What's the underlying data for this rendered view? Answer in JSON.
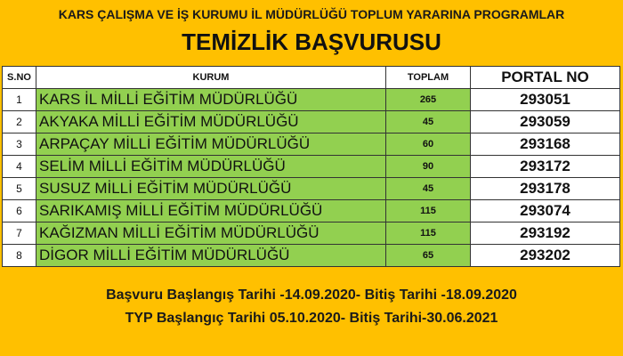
{
  "header": {
    "org": "KARS ÇALIŞMA VE İŞ KURUMU İL MÜDÜRLÜĞÜ TOPLUM YARARINA PROGRAMLAR",
    "title": "TEMİZLİK BAŞVURUSU"
  },
  "table": {
    "columns": [
      "S.NO",
      "KURUM",
      "TOPLAM",
      "PORTAL NO"
    ],
    "rows": [
      {
        "no": "1",
        "kurum": "KARS İL MİLLİ EĞİTİM MÜDÜRLÜĞÜ",
        "toplam": "265",
        "portal": "293051"
      },
      {
        "no": "2",
        "kurum": "AKYAKA MİLLİ EĞİTİM MÜDÜRLÜĞÜ",
        "toplam": "45",
        "portal": "293059"
      },
      {
        "no": "3",
        "kurum": "ARPAÇAY MİLLİ EĞİTİM MÜDÜRLÜĞÜ",
        "toplam": "60",
        "portal": "293168"
      },
      {
        "no": "4",
        "kurum": "SELİM MİLLİ EĞİTİM MÜDÜRLÜĞÜ",
        "toplam": "90",
        "portal": "293172"
      },
      {
        "no": "5",
        "kurum": "SUSUZ MİLLİ EĞİTİM MÜDÜRLÜĞÜ",
        "toplam": "45",
        "portal": "293178"
      },
      {
        "no": "6",
        "kurum": "SARIKAMIŞ MİLLİ EĞİTİM MÜDÜRLÜĞÜ",
        "toplam": "115",
        "portal": "293074"
      },
      {
        "no": "7",
        "kurum": "KAĞIZMAN MİLLİ EĞİTİM MÜDÜRLÜĞÜ",
        "toplam": "115",
        "portal": "293192"
      },
      {
        "no": "8",
        "kurum": "DİGOR MİLLİ EĞİTİM MÜDÜRLÜĞÜ",
        "toplam": "65",
        "portal": "293202"
      }
    ]
  },
  "footer": {
    "line1": "Başvuru Başlangış Tarihi  -14.09.2020- Bitiş Tarihi -18.09.2020",
    "line2": "TYP Başlangıç Tarihi 05.10.2020- Bitiş Tarihi-30.06.2021"
  },
  "colors": {
    "background": "#FFC000",
    "highlight": "#92D050"
  }
}
